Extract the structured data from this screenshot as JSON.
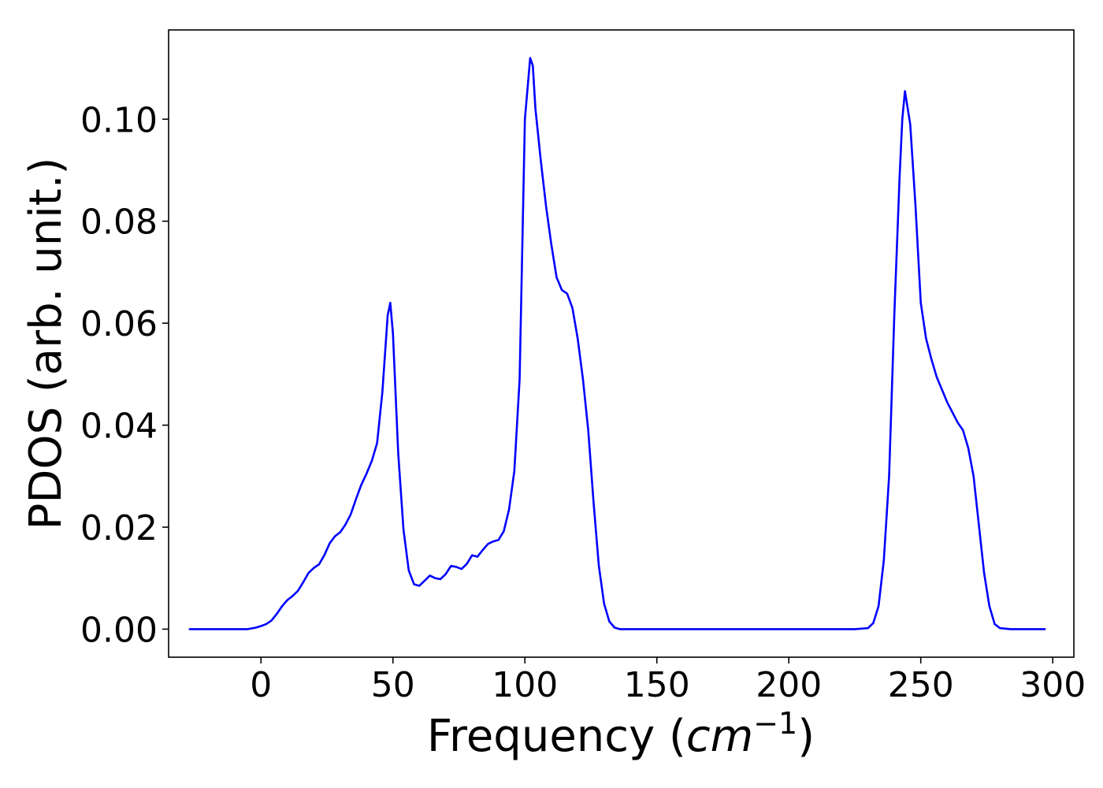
{
  "chart_data": {
    "type": "line",
    "title": "",
    "xlabel": "Frequency (cm⁻¹)",
    "xlabel_parts": {
      "prefix": "Frequency (",
      "unit": "cm",
      "exponent": "−1",
      "suffix": ")"
    },
    "ylabel": "PDOS (arb. unit.)",
    "xlim": [
      -35,
      308
    ],
    "ylim": [
      -0.0055,
      0.1175
    ],
    "xticks": [
      0,
      50,
      100,
      150,
      200,
      250,
      300
    ],
    "xtick_labels": [
      "0",
      "50",
      "100",
      "150",
      "200",
      "250",
      "300"
    ],
    "yticks": [
      0.0,
      0.02,
      0.04,
      0.06,
      0.08,
      0.1
    ],
    "ytick_labels": [
      "0.00",
      "0.02",
      "0.04",
      "0.06",
      "0.08",
      "0.10"
    ],
    "grid": false,
    "legend": "none",
    "series": [
      {
        "color": "#0000ff",
        "x": [
          -27,
          -5,
          -2,
          0,
          2,
          4,
          6,
          8,
          10,
          12,
          14,
          16,
          18,
          20,
          22,
          24,
          26,
          28,
          30,
          32,
          34,
          36,
          38,
          40,
          42,
          44,
          46,
          48,
          49,
          50,
          52,
          54,
          56,
          58,
          60,
          62,
          64,
          66,
          68,
          70,
          72,
          74,
          76,
          78,
          80,
          82,
          84,
          86,
          88,
          90,
          92,
          94,
          96,
          98,
          100,
          102,
          103,
          104,
          106,
          108,
          110,
          112,
          114,
          116,
          118,
          120,
          122,
          124,
          126,
          128,
          130,
          132,
          134,
          136,
          140,
          160,
          200,
          225,
          230,
          232,
          234,
          236,
          238,
          240,
          242,
          243,
          244,
          246,
          248,
          250,
          252,
          254,
          256,
          258,
          260,
          262,
          264,
          266,
          268,
          270,
          272,
          274,
          276,
          278,
          280,
          284,
          297
        ],
        "y": [
          0.0,
          0.0,
          0.0003,
          0.0006,
          0.001,
          0.0017,
          0.003,
          0.0045,
          0.0057,
          0.0065,
          0.0075,
          0.0092,
          0.011,
          0.012,
          0.0127,
          0.0145,
          0.0168,
          0.0182,
          0.019,
          0.0205,
          0.0225,
          0.0255,
          0.0283,
          0.0305,
          0.033,
          0.0365,
          0.0465,
          0.0615,
          0.064,
          0.058,
          0.0345,
          0.0195,
          0.0115,
          0.0088,
          0.0085,
          0.0095,
          0.0105,
          0.01,
          0.0098,
          0.0108,
          0.0124,
          0.0122,
          0.0118,
          0.0128,
          0.0145,
          0.0142,
          0.0155,
          0.0167,
          0.0172,
          0.0175,
          0.0192,
          0.0235,
          0.031,
          0.049,
          0.1,
          0.112,
          0.1105,
          0.102,
          0.092,
          0.083,
          0.0755,
          0.069,
          0.0665,
          0.0658,
          0.063,
          0.057,
          0.049,
          0.039,
          0.025,
          0.0125,
          0.005,
          0.0015,
          0.0003,
          0.0,
          0.0,
          0.0,
          0.0,
          0.0,
          0.0002,
          0.0012,
          0.0045,
          0.0135,
          0.03,
          0.062,
          0.089,
          0.1,
          0.1055,
          0.099,
          0.083,
          0.064,
          0.057,
          0.053,
          0.0495,
          0.047,
          0.0445,
          0.0425,
          0.0405,
          0.039,
          0.0355,
          0.03,
          0.0205,
          0.011,
          0.0045,
          0.001,
          0.0002,
          0.0,
          0.0
        ]
      }
    ]
  }
}
